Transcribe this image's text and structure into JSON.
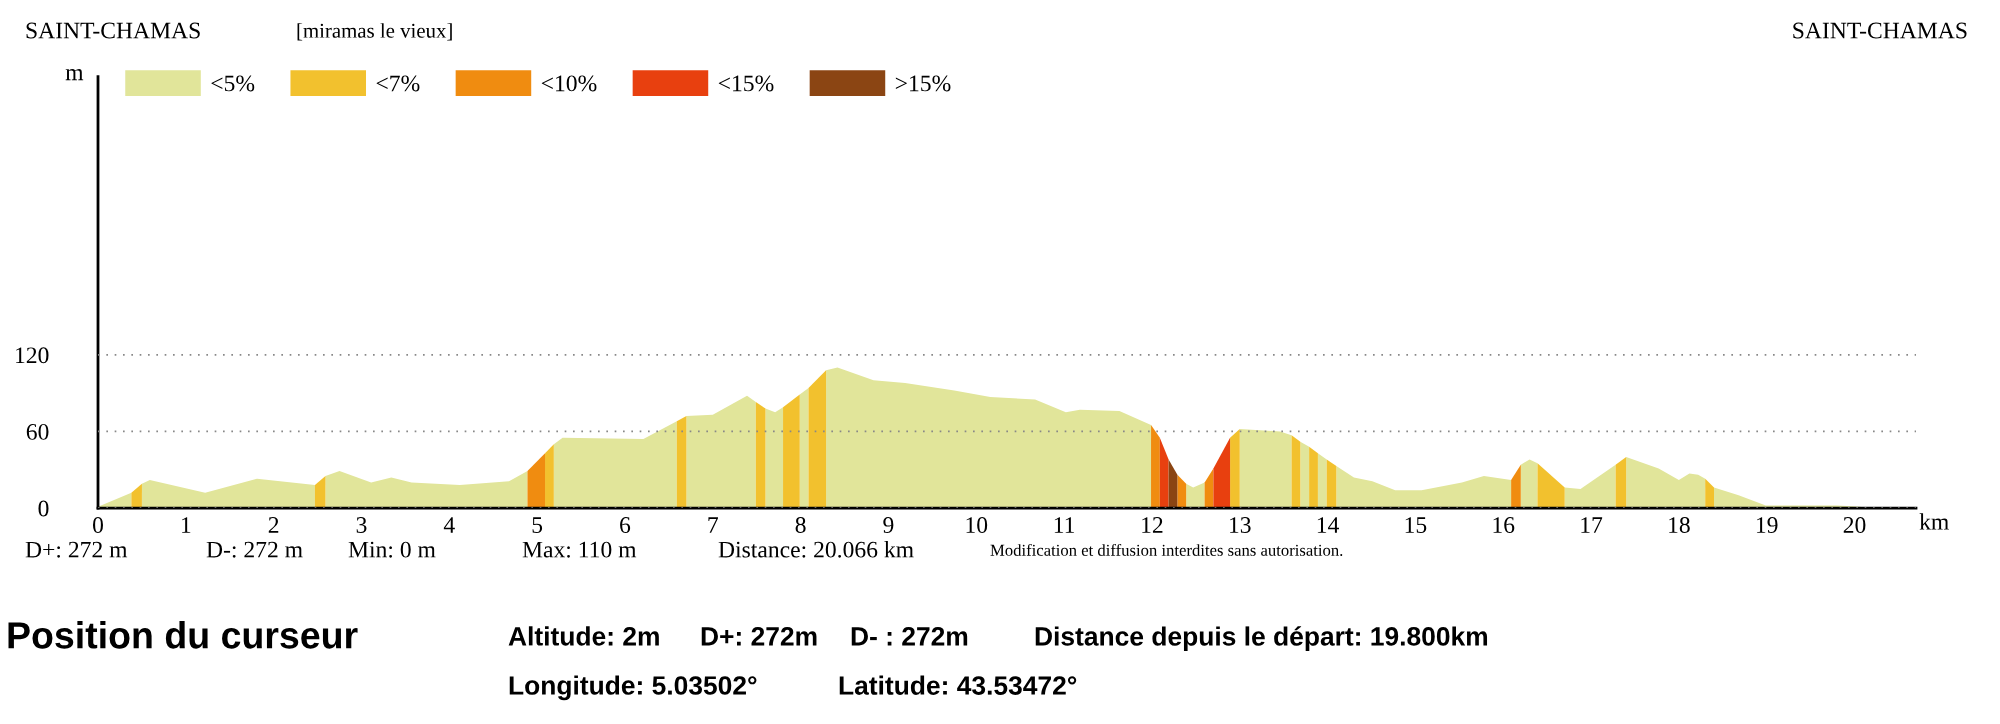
{
  "chart_data": {
    "type": "area",
    "title": "SAINT-CHAMAS",
    "subtitle": "[miramas le vieux]",
    "xlabel": "km",
    "ylabel": "m",
    "xlim": [
      0,
      20.7
    ],
    "xticks": [
      0,
      1,
      2,
      3,
      4,
      5,
      6,
      7,
      8,
      9,
      10,
      11,
      12,
      13,
      14,
      15,
      16,
      17,
      18,
      19,
      20
    ],
    "ylim": [
      0,
      338
    ],
    "yticks": [
      0,
      60,
      120
    ],
    "grid": "y",
    "legend": "top left",
    "series": [
      {
        "name": "<5%",
        "color": "#e1e59a",
        "x": [
          0,
          0.38,
          null,
          0.5,
          0.59,
          1.22,
          1.81,
          2.47,
          null,
          2.59,
          2.75,
          3.11,
          3.34,
          3.57,
          4.12,
          4.68,
          4.89,
          null,
          5.19,
          5.29,
          6.21,
          6.59,
          null,
          6.7,
          7.0,
          7.39,
          7.49,
          null,
          7.6,
          7.71,
          7.8,
          null,
          7.99,
          8.09,
          null,
          8.29,
          8.42,
          8.83,
          9.19,
          9.75,
          10.16,
          10.67,
          11.02,
          11.18,
          11.63,
          11.99,
          null,
          12.39,
          12.47,
          12.6,
          null,
          13.0,
          13.46,
          13.59,
          null,
          13.69,
          13.79,
          null,
          13.89,
          13.99,
          null,
          14.1,
          14.3,
          14.51,
          14.77,
          15.07,
          15.53,
          15.78,
          16.09,
          null,
          16.2,
          16.3,
          16.39,
          null,
          16.7,
          16.88,
          17.28,
          null,
          17.4,
          17.77,
          18.0,
          18.12,
          18.22,
          18.3,
          null,
          18.4,
          18.68,
          18.99,
          19.8,
          20.07
        ],
        "values": [
          1,
          12,
          null,
          19,
          22,
          12,
          23,
          18,
          null,
          25,
          29,
          20,
          24,
          20,
          18,
          21,
          29,
          null,
          50,
          55,
          54,
          68,
          null,
          72,
          73,
          88,
          83,
          null,
          78,
          75,
          79,
          null,
          89,
          94,
          null,
          108,
          110,
          100,
          98,
          92,
          87,
          85,
          75,
          77,
          76,
          65,
          null,
          19,
          16,
          20,
          null,
          62,
          60,
          57,
          null,
          52,
          48,
          null,
          43,
          38,
          null,
          33,
          24,
          21,
          14,
          14,
          20,
          25,
          22,
          null,
          34,
          38,
          35,
          null,
          16,
          15,
          34,
          null,
          40,
          31,
          22,
          27,
          26,
          23,
          null,
          16,
          10,
          2,
          2,
          1
        ]
      },
      {
        "name": "<7%",
        "color": "#f2c12e",
        "x": [
          0.38,
          0.5,
          null,
          2.47,
          2.59,
          null,
          5.09,
          5.19,
          null,
          6.59,
          6.7,
          null,
          7.49,
          7.6,
          null,
          7.8,
          7.99,
          null,
          8.09,
          8.29,
          null,
          12.89,
          13.0,
          null,
          13.59,
          13.69,
          null,
          13.79,
          13.89,
          null,
          13.99,
          14.1,
          null,
          16.39,
          16.7,
          null,
          17.28,
          17.4,
          null,
          18.3,
          18.4
        ],
        "values": [
          12,
          19,
          null,
          18,
          25,
          null,
          43,
          50,
          null,
          68,
          72,
          null,
          83,
          78,
          null,
          79,
          89,
          null,
          94,
          108,
          null,
          55,
          62,
          null,
          57,
          52,
          null,
          48,
          43,
          null,
          38,
          33,
          null,
          35,
          16,
          null,
          34,
          40,
          null,
          23,
          16
        ]
      },
      {
        "name": "<10%",
        "color": "#f08c10",
        "x": [
          4.89,
          5.09,
          null,
          11.99,
          12.09,
          null,
          12.29,
          12.39,
          null,
          12.6,
          12.7,
          null,
          16.09,
          16.2
        ],
        "values": [
          29,
          43,
          null,
          65,
          55,
          null,
          26,
          19,
          null,
          20,
          31,
          null,
          22,
          34
        ]
      },
      {
        "name": "<15%",
        "color": "#e8400f",
        "x": [
          12.09,
          12.19,
          null,
          12.7,
          12.89
        ],
        "values": [
          55,
          38,
          null,
          31,
          55
        ]
      },
      {
        "name": ">15%",
        "color": "#8b4513",
        "x": [
          12.19,
          12.29
        ],
        "values": [
          38,
          26
        ]
      }
    ],
    "annotations": [
      "SAINT-CHAMAS",
      "D+: 272 m",
      "D-: 272 m",
      "Min: 0 m",
      "Max: 110 m",
      "Distance: 20.066 km",
      "Modification et diffusion interdites sans autorisation.",
      "Position du curseur",
      "Altitude: 2m",
      "D+: 272m",
      "D- : 272m",
      "Distance depuis le départ: 19.800km",
      "Longitude: 5.03502°",
      "Latitude: 43.53472°"
    ]
  }
}
